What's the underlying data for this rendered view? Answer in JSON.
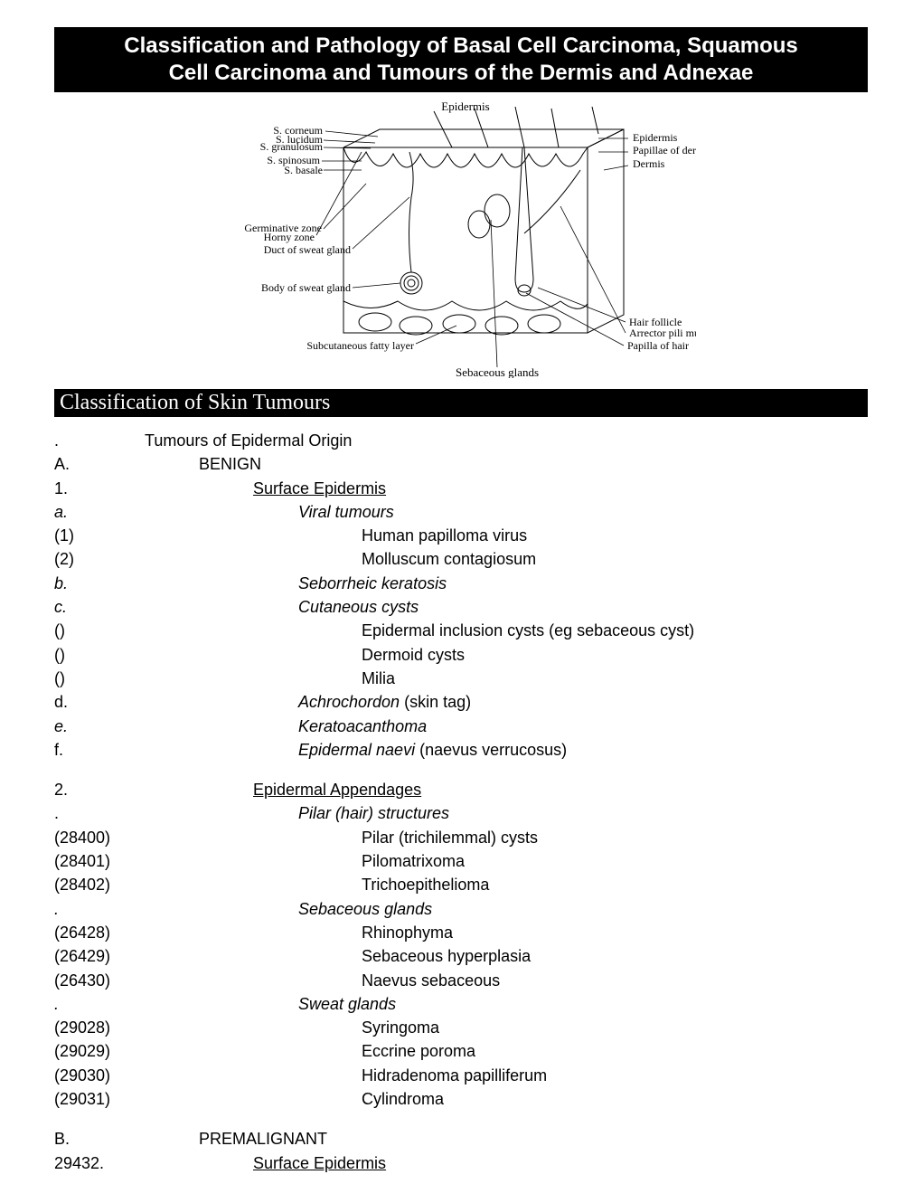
{
  "title_line1": "Classification and Pathology of Basal Cell Carcinoma, Squamous",
  "title_line2": "Cell Carcinoma and Tumours of the Dermis and Adnexae",
  "section_heading": "Classification of Skin Tumours",
  "diagram": {
    "labels": {
      "epidermis_top": "Epidermis",
      "s_corneum": "S. corneum",
      "s_lucidum": "S. lucidum",
      "s_granulosum": "S. granulosum",
      "s_spinosum": "S. spinosum",
      "s_basale": "S. basale",
      "germinative": "Germinative zone",
      "horny": "Horny zone",
      "duct_sweat": "Duct of sweat gland",
      "body_sweat": "Body of sweat gland",
      "subcut": "Subcutaneous fatty layer",
      "sebaceous_glands": "Sebaceous glands",
      "epidermis_r": "Epidermis",
      "papillae": "Papillae of dermis",
      "dermis": "Dermis",
      "hair_follicle": "Hair follicle",
      "arrector": "Arrector pili muscle",
      "papilla_hair": "Papilla of hair"
    }
  },
  "rows": [
    {
      "marker": ".",
      "text": "Tumours of Epidermal Origin",
      "indent": 2,
      "style": ""
    },
    {
      "marker": "A.",
      "text": "BENIGN",
      "indent": 3,
      "style": ""
    },
    {
      "marker": "1.",
      "text": "Surface Epidermis",
      "indent": 4,
      "style": "underline"
    },
    {
      "marker": "a.",
      "text": "Viral tumours",
      "indent": 5,
      "style": "italic",
      "marker_italic": true
    },
    {
      "marker": "(1)",
      "text": "Human papilloma virus",
      "indent": 6,
      "style": ""
    },
    {
      "marker": "(2)",
      "text": "Molluscum contagiosum",
      "indent": 6,
      "style": ""
    },
    {
      "marker": "b.",
      "text": "Seborrheic keratosis",
      "indent": 5,
      "style": "italic",
      "marker_italic": true
    },
    {
      "marker": "c.",
      "text": "Cutaneous cysts",
      "indent": 5,
      "style": "italic",
      "marker_italic": true
    },
    {
      "marker": "()",
      "text": "Epidermal inclusion cysts (eg sebaceous cyst)",
      "indent": 6,
      "style": ""
    },
    {
      "marker": "()",
      "text": "Dermoid cysts",
      "indent": 6,
      "style": ""
    },
    {
      "marker": "()",
      "text": "Milia",
      "indent": 6,
      "style": ""
    },
    {
      "marker": "d.",
      "text_html": "<span class=\"italic\">Achrochordon</span> (skin tag)",
      "indent": 5,
      "style": ""
    },
    {
      "marker": "e.",
      "text": "Keratoacanthoma",
      "indent": 5,
      "style": "italic",
      "marker_italic": true
    },
    {
      "marker": "f.",
      "text_html": "<span class=\"italic\">Epidermal naevi</span> (naevus verrucosus)",
      "indent": 5,
      "style": ""
    },
    {
      "gap": true
    },
    {
      "marker": "2.",
      "text": "Epidermal Appendages",
      "indent": 4,
      "style": "underline"
    },
    {
      "marker": ".",
      "text": "Pilar (hair) structures",
      "indent": 5,
      "style": "italic"
    },
    {
      "marker": "(28400)",
      "text": "Pilar (trichilemmal) cysts",
      "indent": 6,
      "style": ""
    },
    {
      "marker": "(28401)",
      "text": "Pilomatrixoma",
      "indent": 6,
      "style": ""
    },
    {
      "marker": "(28402)",
      "text": "Trichoepithelioma",
      "indent": 6,
      "style": ""
    },
    {
      "marker": ".",
      "text": "Sebaceous glands",
      "indent": 5,
      "style": "italic",
      "marker_italic": true
    },
    {
      "marker": "(26428)",
      "text": "Rhinophyma",
      "indent": 6,
      "style": ""
    },
    {
      "marker": "(26429)",
      "text": "Sebaceous hyperplasia",
      "indent": 6,
      "style": ""
    },
    {
      "marker": "(26430)",
      "text": "Naevus sebaceous",
      "indent": 6,
      "style": ""
    },
    {
      "marker": ".",
      "text": "Sweat glands",
      "indent": 5,
      "style": "italic",
      "marker_italic": true
    },
    {
      "marker": "(29028)",
      "text": "Syringoma",
      "indent": 6,
      "style": ""
    },
    {
      "marker": "(29029)",
      "text": "Eccrine poroma",
      "indent": 6,
      "style": ""
    },
    {
      "marker": "(29030)",
      "text": "Hidradenoma papilliferum",
      "indent": 6,
      "style": ""
    },
    {
      "marker": "(29031)",
      "text": "Cylindroma",
      "indent": 6,
      "style": ""
    },
    {
      "gap": true
    },
    {
      "marker": "B.",
      "text": "PREMALIGNANT",
      "indent": 3,
      "style": ""
    },
    {
      "marker": "29432.",
      "text": "Surface Epidermis",
      "indent": 4,
      "style": "underline"
    }
  ],
  "colors": {
    "bar_bg": "#000000",
    "bar_fg": "#ffffff",
    "page_bg": "#ffffff",
    "text": "#000000"
  }
}
